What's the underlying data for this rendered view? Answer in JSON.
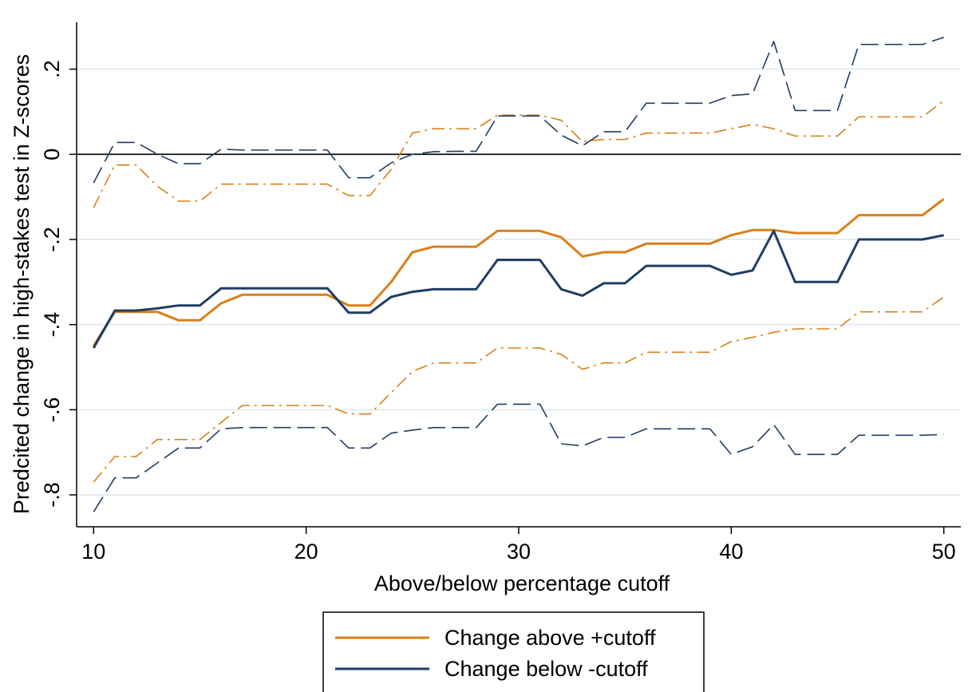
{
  "chart_data": {
    "type": "line",
    "title": "",
    "xlabel": "Above/below percentage cutoff",
    "ylabel": "Predcited change in high-stakes test in Z-scores",
    "xlim": [
      9.2,
      50.8
    ],
    "ylim": [
      -0.875,
      0.31
    ],
    "xticks": [
      10,
      20,
      30,
      40,
      50
    ],
    "xtick_labels": [
      "10",
      "20",
      "30",
      "40",
      "50"
    ],
    "yticks": [
      -0.8,
      -0.6,
      -0.4,
      -0.2,
      0,
      0.2
    ],
    "ytick_labels": [
      "-.8",
      "-.6",
      "-.4",
      "-.2",
      "0",
      ".2"
    ],
    "grid": "horizontal",
    "reference_line_y": 0,
    "legend_position": "bottom",
    "x": [
      10,
      11,
      12,
      13,
      14,
      15,
      16,
      17,
      18,
      19,
      20,
      21,
      22,
      23,
      24,
      25,
      26,
      27,
      28,
      29,
      30,
      31,
      32,
      33,
      34,
      35,
      36,
      37,
      38,
      39,
      40,
      41,
      42,
      43,
      44,
      45,
      46,
      47,
      48,
      49,
      50
    ],
    "series": [
      {
        "name": "Change above +cutoff",
        "role": "estimate",
        "color": "#d98018",
        "style": "solid",
        "values": [
          -0.45,
          -0.37,
          -0.37,
          -0.37,
          -0.39,
          -0.39,
          -0.35,
          -0.33,
          -0.33,
          -0.33,
          -0.33,
          -0.33,
          -0.355,
          -0.355,
          -0.3,
          -0.23,
          -0.217,
          -0.217,
          -0.217,
          -0.18,
          -0.18,
          -0.18,
          -0.195,
          -0.24,
          -0.23,
          -0.23,
          -0.21,
          -0.21,
          -0.21,
          -0.21,
          -0.19,
          -0.178,
          -0.178,
          -0.185,
          -0.185,
          -0.185,
          -0.143,
          -0.143,
          -0.143,
          -0.143,
          -0.105
        ]
      },
      {
        "name": "",
        "role": "upper-ci",
        "color": "#d98018",
        "style": "dash-dot",
        "values": [
          -0.125,
          -0.025,
          -0.025,
          -0.075,
          -0.11,
          -0.11,
          -0.07,
          -0.07,
          -0.07,
          -0.07,
          -0.07,
          -0.07,
          -0.097,
          -0.097,
          -0.035,
          0.05,
          0.06,
          0.06,
          0.06,
          0.092,
          0.092,
          0.092,
          0.08,
          0.03,
          0.035,
          0.035,
          0.05,
          0.05,
          0.05,
          0.05,
          0.06,
          0.07,
          0.06,
          0.043,
          0.043,
          0.043,
          0.088,
          0.088,
          0.088,
          0.088,
          0.126
        ]
      },
      {
        "name": "",
        "role": "lower-ci",
        "color": "#d98018",
        "style": "dash-dot",
        "values": [
          -0.77,
          -0.71,
          -0.71,
          -0.67,
          -0.67,
          -0.67,
          -0.63,
          -0.59,
          -0.59,
          -0.59,
          -0.59,
          -0.59,
          -0.61,
          -0.61,
          -0.56,
          -0.51,
          -0.49,
          -0.49,
          -0.49,
          -0.455,
          -0.455,
          -0.455,
          -0.47,
          -0.505,
          -0.49,
          -0.49,
          -0.465,
          -0.465,
          -0.465,
          -0.465,
          -0.44,
          -0.43,
          -0.418,
          -0.41,
          -0.41,
          -0.41,
          -0.37,
          -0.37,
          -0.37,
          -0.37,
          -0.335
        ]
      },
      {
        "name": "Change below -cutoff",
        "role": "estimate",
        "color": "#1f3d63",
        "style": "solid",
        "values": [
          -0.455,
          -0.367,
          -0.367,
          -0.362,
          -0.355,
          -0.355,
          -0.315,
          -0.315,
          -0.315,
          -0.315,
          -0.315,
          -0.315,
          -0.372,
          -0.372,
          -0.335,
          -0.323,
          -0.317,
          -0.317,
          -0.317,
          -0.248,
          -0.248,
          -0.248,
          -0.317,
          -0.332,
          -0.303,
          -0.303,
          -0.262,
          -0.262,
          -0.262,
          -0.262,
          -0.283,
          -0.273,
          -0.18,
          -0.3,
          -0.3,
          -0.3,
          -0.2,
          -0.2,
          -0.2,
          -0.2,
          -0.19
        ]
      },
      {
        "name": "",
        "role": "upper-ci",
        "color": "#1f3d63",
        "style": "dash",
        "values": [
          -0.067,
          0.028,
          0.028,
          0.0,
          -0.022,
          -0.022,
          0.012,
          0.01,
          0.01,
          0.01,
          0.01,
          0.01,
          -0.055,
          -0.055,
          -0.02,
          0.0,
          0.006,
          0.007,
          0.007,
          0.09,
          0.09,
          0.09,
          0.045,
          0.02,
          0.053,
          0.053,
          0.12,
          0.12,
          0.12,
          0.12,
          0.138,
          0.142,
          0.265,
          0.103,
          0.103,
          0.103,
          0.258,
          0.258,
          0.258,
          0.258,
          0.275
        ]
      },
      {
        "name": "",
        "role": "lower-ci",
        "color": "#1f3d63",
        "style": "dash",
        "values": [
          -0.84,
          -0.76,
          -0.76,
          -0.725,
          -0.69,
          -0.69,
          -0.645,
          -0.642,
          -0.642,
          -0.642,
          -0.642,
          -0.642,
          -0.69,
          -0.69,
          -0.655,
          -0.648,
          -0.642,
          -0.642,
          -0.642,
          -0.587,
          -0.587,
          -0.587,
          -0.68,
          -0.685,
          -0.665,
          -0.665,
          -0.645,
          -0.645,
          -0.645,
          -0.645,
          -0.705,
          -0.687,
          -0.635,
          -0.705,
          -0.705,
          -0.705,
          -0.66,
          -0.66,
          -0.66,
          -0.66,
          -0.658
        ]
      }
    ],
    "legend": [
      {
        "label": "Change above +cutoff",
        "color": "#d98018"
      },
      {
        "label": "Change below -cutoff",
        "color": "#1f3d63"
      }
    ]
  }
}
